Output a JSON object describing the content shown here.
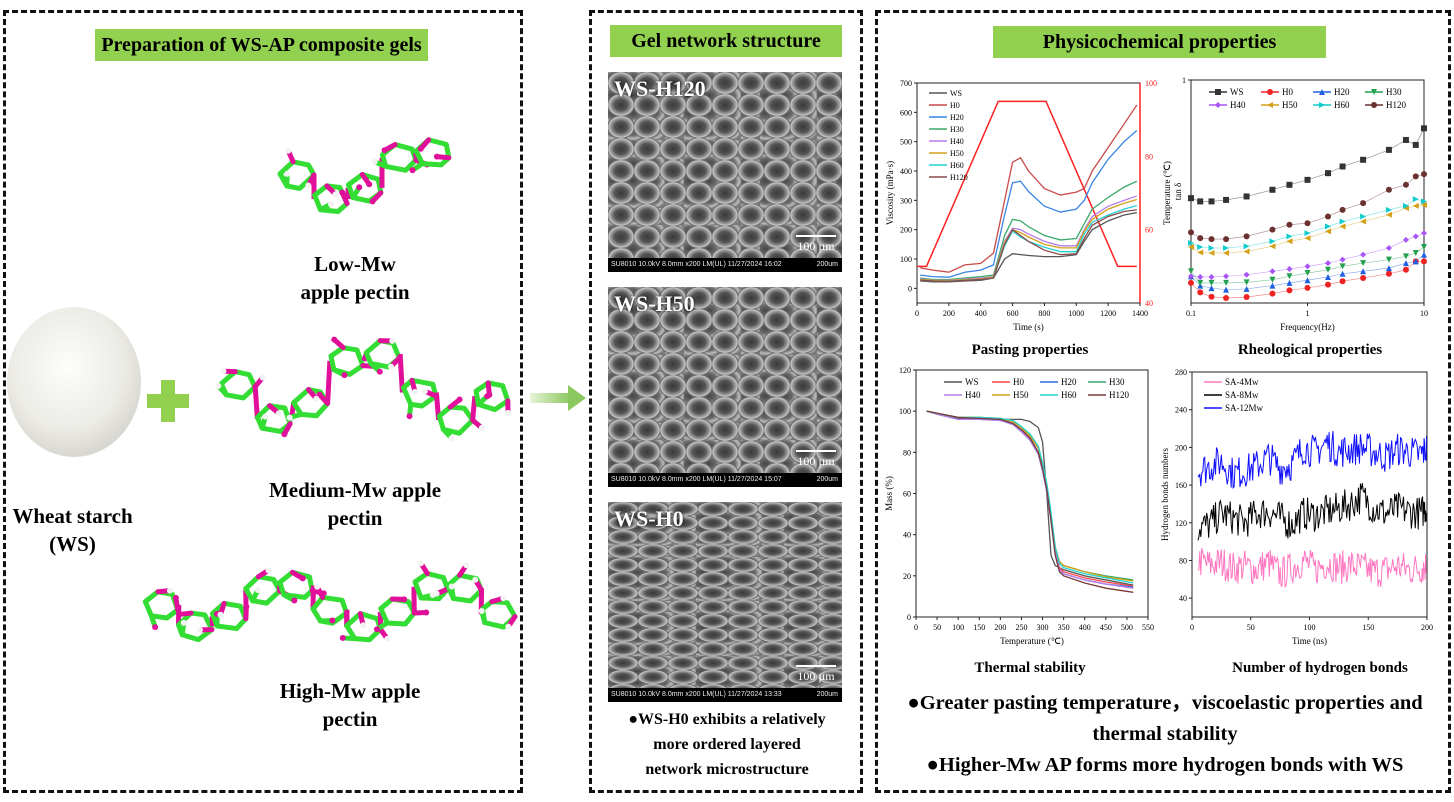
{
  "panels": {
    "preparation": {
      "title": "Preparation of WS-AP composite gels",
      "labels": {
        "low1": "Low-Mw",
        "low2": "apple pectin",
        "med1": "Medium-Mw apple",
        "med2": "pectin",
        "high1": "High-Mw apple",
        "high2": "pectin",
        "ws1": "Wheat starch",
        "ws2": "(WS)"
      },
      "colors": {
        "banner": "#92d050",
        "carbon": "#33dd33",
        "oxygen": "#e0109a",
        "plus": "#92d050",
        "arrow": "#a8d878"
      }
    },
    "network": {
      "title": "Gel network structure",
      "images": [
        {
          "name": "WS-H120",
          "info": "SU8010 10.0kV 8.0mm x200 LM(UL) 11/27/2024 16:02",
          "mag": "200um",
          "scale": "100 µm"
        },
        {
          "name": "WS-H50",
          "info": "SU8010 10.0kV 8.0mm x200 LM(UL) 11/27/2024 15:07",
          "mag": "200um",
          "scale": "100 µm"
        },
        {
          "name": "WS-H0",
          "info": "SU8010 10.0kV 8.0mm x200 LM(UL) 11/27/2024 13:33",
          "mag": "200um",
          "scale": "100 µm"
        }
      ],
      "note": [
        "●WS-H0 exhibits a relatively",
        "more ordered layered",
        "network microstructure"
      ]
    },
    "properties": {
      "title": "Physicochemical properties",
      "conclusions": [
        "●Greater pasting temperature，viscoelastic properties and",
        "thermal stability",
        "●Higher-Mw AP forms more hydrogen bonds with WS"
      ]
    }
  },
  "chart_data": [
    {
      "id": "pasting",
      "type": "line",
      "title": "Pasting properties",
      "xlabel": "Time (s)",
      "ylabel": "Viscosity (mPa·s)",
      "y2label": "Temperature (℃)",
      "xlim": [
        0,
        1400
      ],
      "ylim": [
        -50,
        700
      ],
      "y2lim": [
        40,
        100
      ],
      "xticks": [
        0,
        200,
        400,
        600,
        800,
        1000,
        1200,
        1400
      ],
      "yticks": [
        0,
        100,
        200,
        300,
        400,
        500,
        600,
        700
      ],
      "y2ticks": [
        40,
        60,
        80,
        100
      ],
      "legend": "top-left",
      "x": [
        20,
        100,
        200,
        300,
        400,
        480,
        550,
        600,
        650,
        700,
        800,
        900,
        1000,
        1050,
        1100,
        1200,
        1300,
        1380
      ],
      "series": [
        {
          "name": "WS",
          "color": "#555555",
          "values": [
            25,
            22,
            22,
            25,
            27,
            35,
            100,
            118,
            115,
            112,
            108,
            108,
            115,
            160,
            200,
            230,
            250,
            258
          ]
        },
        {
          "name": "H0",
          "color": "#c94a4a",
          "values": [
            70,
            62,
            55,
            80,
            85,
            120,
            300,
            430,
            445,
            400,
            340,
            318,
            328,
            340,
            400,
            480,
            560,
            625
          ]
        },
        {
          "name": "H20",
          "color": "#3a84e6",
          "values": [
            45,
            40,
            38,
            55,
            62,
            80,
            250,
            360,
            365,
            330,
            280,
            260,
            270,
            300,
            360,
            440,
            500,
            538
          ]
        },
        {
          "name": "H30",
          "color": "#3aaa6a",
          "values": [
            35,
            30,
            30,
            35,
            40,
            45,
            180,
            235,
            230,
            210,
            180,
            165,
            170,
            220,
            270,
            310,
            345,
            365
          ]
        },
        {
          "name": "H40",
          "color": "#b57ee8",
          "values": [
            32,
            28,
            28,
            32,
            35,
            40,
            160,
            205,
            200,
            185,
            160,
            145,
            145,
            200,
            245,
            280,
            300,
            315
          ]
        },
        {
          "name": "H50",
          "color": "#d4a017",
          "values": [
            30,
            27,
            27,
            30,
            32,
            38,
            155,
            200,
            190,
            175,
            150,
            138,
            138,
            195,
            235,
            270,
            290,
            303
          ]
        },
        {
          "name": "H60",
          "color": "#22d3d3",
          "values": [
            28,
            25,
            25,
            28,
            30,
            35,
            145,
            195,
            175,
            160,
            140,
            125,
            125,
            185,
            225,
            250,
            270,
            282
          ]
        },
        {
          "name": "H120",
          "color": "#8b4a4a",
          "values": [
            28,
            25,
            24,
            27,
            30,
            35,
            150,
            200,
            180,
            160,
            130,
            115,
            118,
            170,
            215,
            245,
            262,
            268
          ]
        }
      ],
      "temperature": {
        "color": "#ff2020",
        "x": [
          0,
          60,
          510,
          810,
          1260,
          1380
        ],
        "values": [
          50,
          50,
          95,
          95,
          50,
          50
        ]
      }
    },
    {
      "id": "rheology",
      "type": "line",
      "title": "Rheological properties",
      "xlabel": "Frequency(Hz)",
      "ylabel": "tan δ",
      "xscale": "log",
      "xlim": [
        0.1,
        10
      ],
      "ylim": [
        0.1,
        1
      ],
      "xticks": [
        0.1,
        1,
        10
      ],
      "yticks": [
        1
      ],
      "legend": "top",
      "x": [
        0.1,
        0.12,
        0.15,
        0.2,
        0.3,
        0.5,
        0.7,
        1,
        1.5,
        2,
        3,
        5,
        7,
        8.5,
        10
      ],
      "series": [
        {
          "name": "WS",
          "color": "#333333",
          "marker": "square",
          "values": [
            0.523,
            0.51,
            0.51,
            0.516,
            0.53,
            0.557,
            0.577,
            0.597,
            0.624,
            0.651,
            0.678,
            0.718,
            0.758,
            0.738,
            0.805
          ]
        },
        {
          "name": "H0",
          "color": "#ee2222",
          "marker": "circle",
          "values": [
            0.181,
            0.143,
            0.125,
            0.12,
            0.124,
            0.138,
            0.151,
            0.161,
            0.174,
            0.188,
            0.201,
            0.218,
            0.234,
            0.268,
            0.268
          ]
        },
        {
          "name": "H20",
          "color": "#1f5fe0",
          "marker": "triangle-up",
          "values": [
            0.208,
            0.17,
            0.16,
            0.154,
            0.157,
            0.17,
            0.181,
            0.192,
            0.205,
            0.218,
            0.228,
            0.241,
            0.261,
            0.268,
            0.295
          ]
        },
        {
          "name": "H30",
          "color": "#22a050",
          "marker": "triangle-down",
          "values": [
            0.228,
            0.181,
            0.181,
            0.181,
            0.183,
            0.194,
            0.208,
            0.221,
            0.234,
            0.248,
            0.261,
            0.275,
            0.288,
            0.302,
            0.326
          ]
        },
        {
          "name": "H40",
          "color": "#a855f7",
          "marker": "diamond",
          "values": [
            0.208,
            0.205,
            0.205,
            0.208,
            0.214,
            0.228,
            0.237,
            0.248,
            0.261,
            0.275,
            0.295,
            0.322,
            0.355,
            0.369,
            0.382
          ]
        },
        {
          "name": "H50",
          "color": "#d4a017",
          "marker": "triangle-left",
          "values": [
            0.326,
            0.304,
            0.302,
            0.302,
            0.308,
            0.329,
            0.349,
            0.362,
            0.389,
            0.409,
            0.429,
            0.456,
            0.483,
            0.492,
            0.496
          ]
        },
        {
          "name": "H60",
          "color": "#10cccc",
          "marker": "triangle-right",
          "values": [
            0.342,
            0.326,
            0.322,
            0.322,
            0.329,
            0.349,
            0.369,
            0.382,
            0.409,
            0.429,
            0.449,
            0.476,
            0.492,
            0.519,
            0.51
          ]
        },
        {
          "name": "H120",
          "color": "#6b3030",
          "marker": "circle",
          "values": [
            0.385,
            0.362,
            0.358,
            0.358,
            0.369,
            0.396,
            0.416,
            0.422,
            0.449,
            0.476,
            0.503,
            0.557,
            0.577,
            0.611,
            0.62
          ]
        }
      ]
    },
    {
      "id": "thermal",
      "type": "line",
      "title": "Thermal stability",
      "xlabel": "Temperature (℃)",
      "ylabel": "Mass (%)",
      "xlim": [
        0,
        550
      ],
      "ylim": [
        0,
        120
      ],
      "xticks": [
        0,
        50,
        100,
        150,
        200,
        250,
        300,
        350,
        400,
        450,
        500,
        550
      ],
      "yticks": [
        0,
        20,
        40,
        60,
        80,
        100,
        120
      ],
      "legend": "top",
      "x": [
        25,
        50,
        100,
        150,
        200,
        230,
        250,
        270,
        290,
        300,
        310,
        320,
        330,
        340,
        350,
        400,
        450,
        515
      ],
      "series": [
        {
          "name": "WS",
          "color": "#555555",
          "values": [
            100,
            99,
            96.5,
            96,
            96,
            96,
            96,
            95,
            92,
            85,
            60,
            30,
            25,
            24,
            23,
            20,
            18,
            15.5
          ]
        },
        {
          "name": "H0",
          "color": "#ff4444",
          "values": [
            100,
            99,
            97,
            96.5,
            96,
            94,
            91,
            87,
            80,
            72,
            62,
            48,
            32,
            24,
            22,
            19,
            17,
            15
          ]
        },
        {
          "name": "H20",
          "color": "#2f6fe0",
          "values": [
            100,
            98.5,
            96,
            96,
            95.5,
            93.5,
            90,
            86,
            79,
            71,
            61,
            47,
            31,
            23,
            21,
            18,
            16,
            14.5
          ]
        },
        {
          "name": "H30",
          "color": "#3aaa6a",
          "values": [
            100,
            99,
            97,
            97,
            96.5,
            95,
            92,
            88,
            82,
            74,
            64,
            50,
            34,
            27,
            25,
            22,
            20,
            18
          ]
        },
        {
          "name": "H40",
          "color": "#b57ee8",
          "values": [
            100,
            98.5,
            96,
            96,
            95.5,
            93.5,
            90,
            86,
            79,
            71,
            61,
            47,
            31,
            23,
            21,
            18,
            16,
            14
          ]
        },
        {
          "name": "H50",
          "color": "#d4a017",
          "values": [
            100,
            99,
            97,
            97,
            96.5,
            95,
            92,
            88,
            82,
            74,
            64,
            50,
            34,
            27,
            25,
            22,
            19.5,
            17.5
          ]
        },
        {
          "name": "H60",
          "color": "#22d3d3",
          "values": [
            100,
            99,
            97,
            97,
            96.5,
            95.5,
            92.5,
            89,
            83,
            75,
            65,
            51,
            34,
            26,
            24,
            21,
            19,
            16.5
          ]
        },
        {
          "name": "H120",
          "color": "#7a3a3a",
          "values": [
            100,
            99,
            97,
            96.5,
            96,
            94,
            91,
            87,
            80,
            72,
            62,
            47,
            30,
            22,
            20,
            16.5,
            14,
            12
          ]
        }
      ]
    },
    {
      "id": "hbonds",
      "type": "line",
      "title": "Number of hydrogen bonds",
      "xlabel": "Time (ns)",
      "ylabel": "Hydrogen bonds numbers",
      "xlim": [
        0,
        200
      ],
      "ylim": [
        20,
        280
      ],
      "xticks": [
        0,
        50,
        100,
        150,
        200
      ],
      "yticks": [
        40,
        80,
        120,
        160,
        200,
        240,
        280
      ],
      "legend": "top-left",
      "x": [
        5,
        15,
        25,
        35,
        45,
        55,
        65,
        75,
        85,
        95,
        105,
        115,
        125,
        135,
        145,
        155,
        165,
        175,
        185,
        195,
        200
      ],
      "series": [
        {
          "name": "SA-4Mw",
          "color": "#ff77c0",
          "values": [
            80,
            75,
            78,
            72,
            74,
            70,
            78,
            65,
            72,
            80,
            70,
            78,
            72,
            75,
            72,
            68,
            70,
            74,
            70,
            72,
            75
          ]
        },
        {
          "name": "SA-8Mw",
          "color": "#000000",
          "values": [
            115,
            118,
            130,
            125,
            120,
            130,
            132,
            125,
            118,
            130,
            128,
            132,
            135,
            140,
            148,
            135,
            130,
            135,
            132,
            130,
            138
          ]
        },
        {
          "name": "SA-12Mw",
          "color": "#1010ff",
          "values": [
            175,
            180,
            185,
            172,
            175,
            180,
            190,
            178,
            182,
            200,
            195,
            205,
            195,
            198,
            200,
            195,
            190,
            198,
            195,
            192,
            200
          ]
        }
      ]
    }
  ]
}
